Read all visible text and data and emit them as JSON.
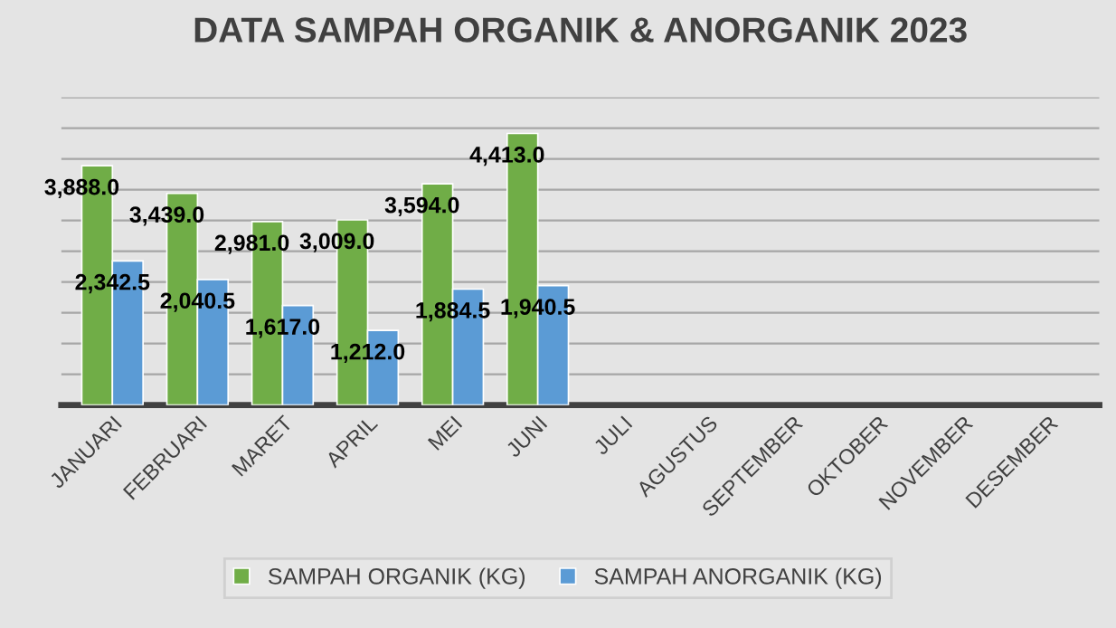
{
  "chart_data": {
    "type": "bar",
    "title": "DATA SAMPAH ORGANIK & ANORGANIK 2023",
    "categories": [
      "JANUARI",
      "FEBRUARI",
      "MARET",
      "APRIL",
      "MEI",
      "JUNI",
      "JULI",
      "AGUSTUS",
      "SEPTEMBER",
      "OKTOBER",
      "NOVEMBER",
      "DESEMBER"
    ],
    "series": [
      {
        "name": "SAMPAH ORGANIK (KG)",
        "color": "#70ad47",
        "values": [
          3888.0,
          3439.0,
          2981.0,
          3009.0,
          3594.0,
          4413.0,
          null,
          null,
          null,
          null,
          null,
          null
        ],
        "value_labels": [
          "3,888.0",
          "3,439.0",
          "2,981.0",
          "3,009.0",
          "3,594.0",
          "4,413.0",
          null,
          null,
          null,
          null,
          null,
          null
        ]
      },
      {
        "name": "SAMPAH ANORGANIK (KG)",
        "color": "#5b9bd5",
        "values": [
          2342.5,
          2040.5,
          1617.0,
          1212.0,
          1884.5,
          1940.5,
          null,
          null,
          null,
          null,
          null,
          null
        ],
        "value_labels": [
          "2,342.5",
          "2,040.5",
          "1,617.0",
          "1,212.0",
          "1,884.5",
          "1,940.5",
          null,
          null,
          null,
          null,
          null,
          null
        ]
      }
    ],
    "ylim": [
      0,
      5000
    ],
    "yticks": [
      {
        "value": 0,
        "label": null
      },
      {
        "value": 500,
        "label": null
      },
      {
        "value": 1000,
        "label": null
      },
      {
        "value": 1500,
        "label": null
      },
      {
        "value": 2000,
        "label": null
      },
      {
        "value": 2500,
        "label": null
      },
      {
        "value": 3000,
        "label": null
      },
      {
        "value": 3500,
        "label": null
      },
      {
        "value": 4000,
        "label": null
      },
      {
        "value": 4500,
        "label": null
      },
      {
        "value": 5000,
        "label": null
      }
    ],
    "tick_labels": "x",
    "grid": "y",
    "legend": "bottom"
  }
}
